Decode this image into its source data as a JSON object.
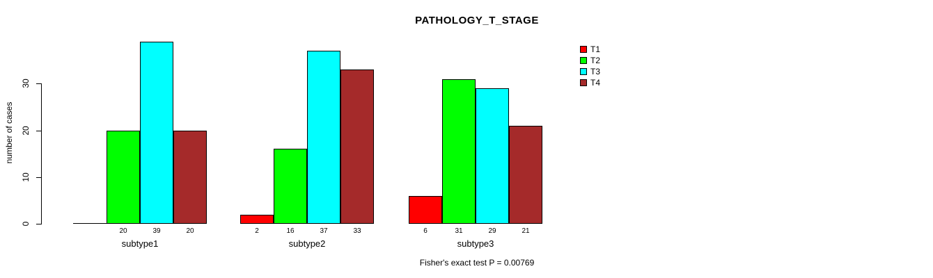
{
  "chart_data": {
    "type": "bar",
    "title": "PATHOLOGY_T_STAGE",
    "ylabel": "number of cases",
    "xlabel": "",
    "categories": [
      "subtype1",
      "subtype2",
      "subtype3"
    ],
    "series": [
      {
        "name": "T1",
        "color": "#ff0000",
        "values": [
          0,
          2,
          6
        ]
      },
      {
        "name": "T2",
        "color": "#00ff00",
        "values": [
          20,
          16,
          31
        ]
      },
      {
        "name": "T3",
        "color": "#00ffff",
        "values": [
          39,
          37,
          29
        ]
      },
      {
        "name": "T4",
        "color": "#a52a2a",
        "values": [
          20,
          33,
          21
        ]
      }
    ],
    "bar_value_labels": [
      [
        "",
        "20",
        "39",
        "20"
      ],
      [
        "2",
        "16",
        "37",
        "33"
      ],
      [
        "6",
        "31",
        "29",
        "21"
      ]
    ],
    "yticks": [
      "0",
      "10",
      "20",
      "30"
    ],
    "ylim": [
      0,
      39
    ],
    "grid": false,
    "legend_position": "right",
    "annotation": "Fisher's exact test P = 0.00769",
    "colors": {
      "background": "#ffffff",
      "axis": "#000000",
      "text": "#000000"
    }
  }
}
